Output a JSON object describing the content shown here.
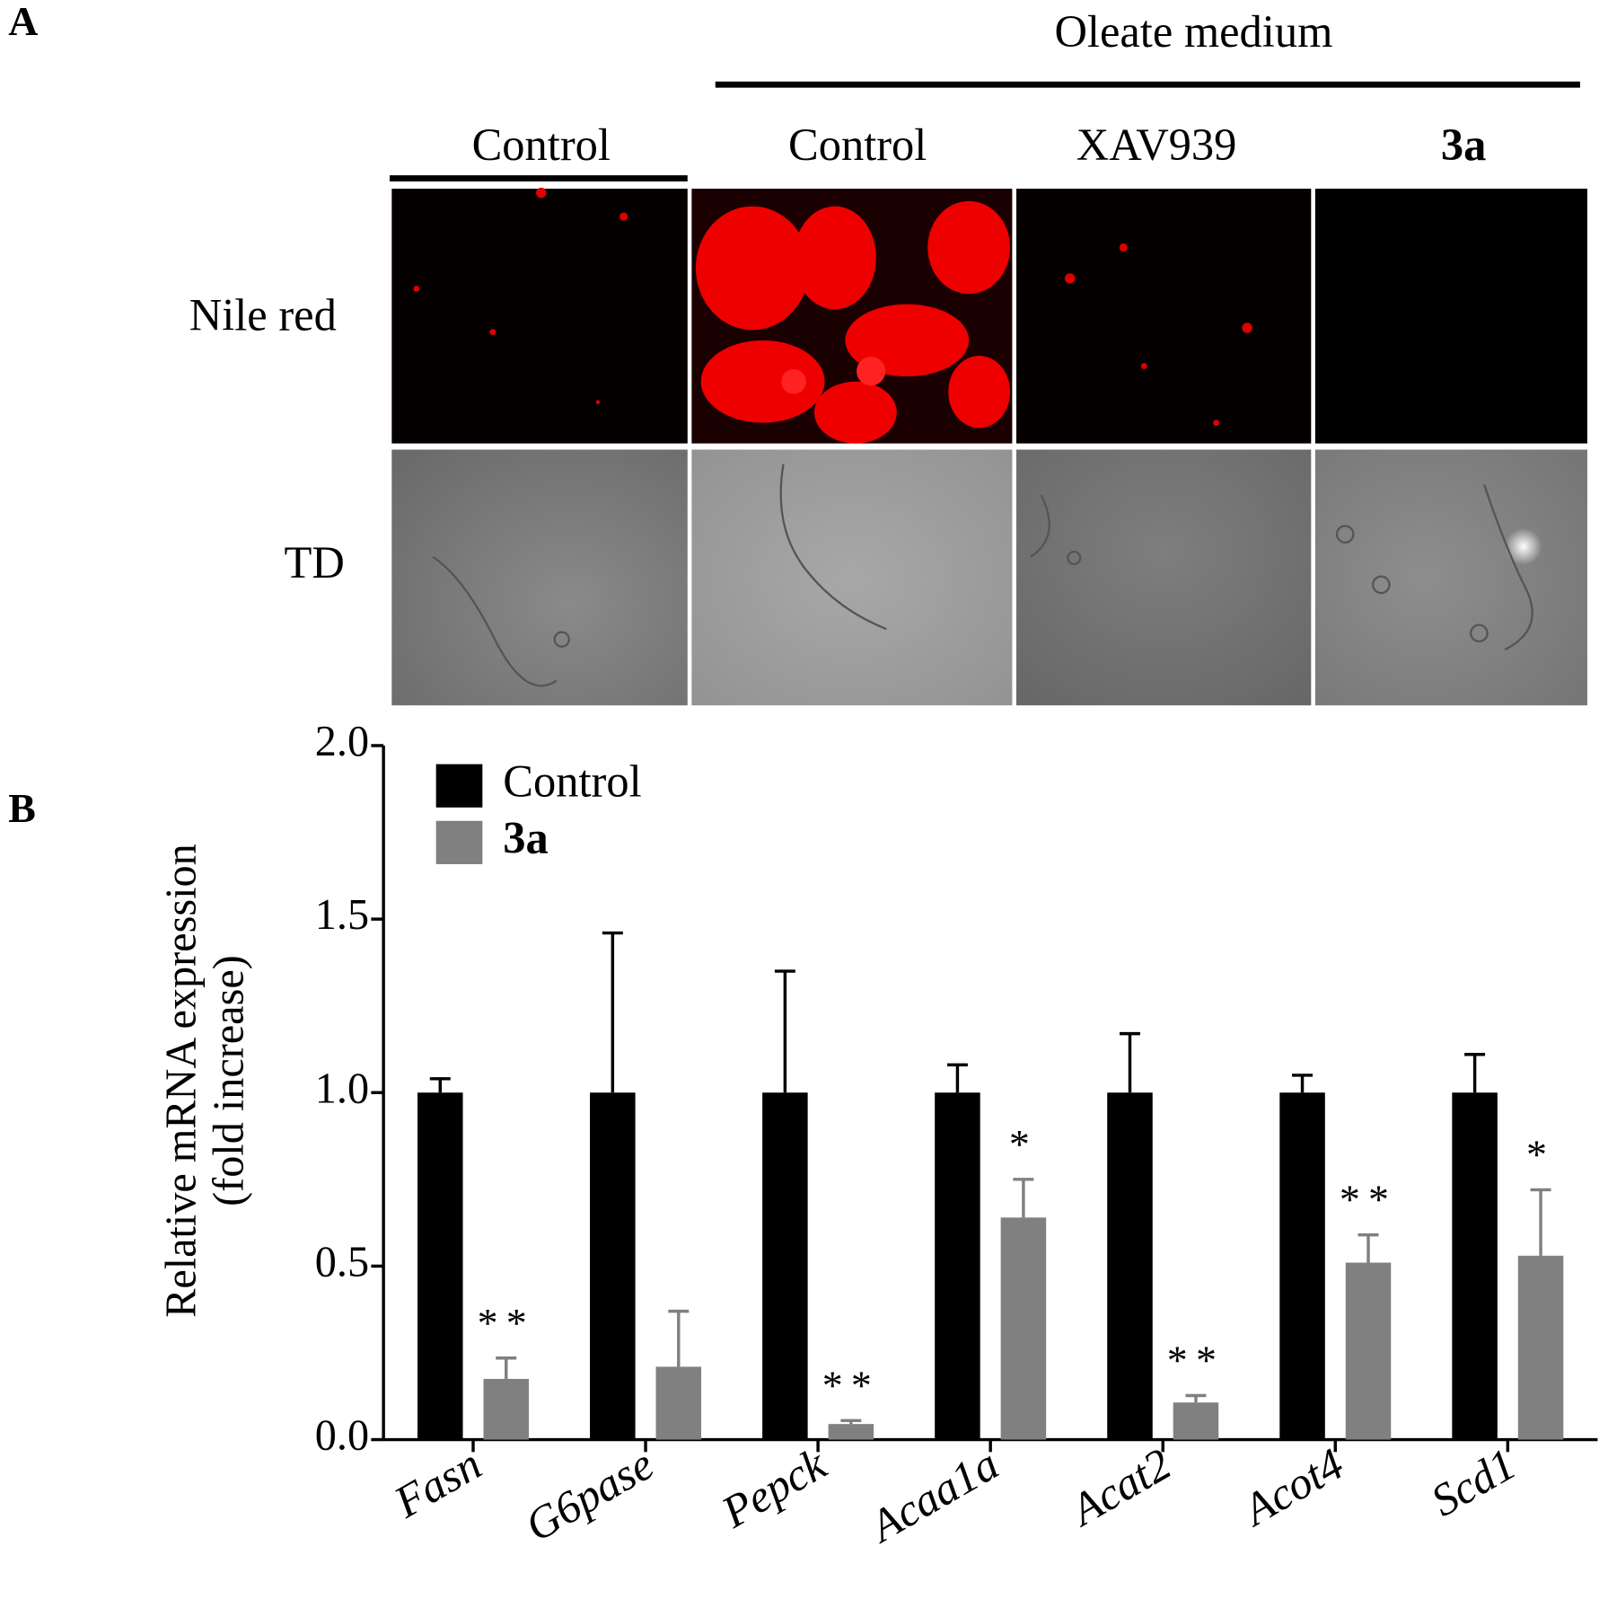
{
  "panel_a": {
    "label": "A",
    "group_label": "Oleate medium",
    "columns": [
      "Control",
      "Control",
      "XAV939",
      "3a"
    ],
    "rows": [
      "Nile red",
      "TD"
    ]
  },
  "panel_b": {
    "label": "B"
  },
  "chart_data": {
    "type": "bar",
    "y_label": [
      "Relative mRNA expression",
      "(fold increase)"
    ],
    "categories": [
      "Fasn",
      "G6pase",
      "Pepck",
      "Acaa1a",
      "Acat2",
      "Acot4",
      "Scd1"
    ],
    "series": [
      {
        "name": "Control",
        "color": "#000000",
        "values": [
          1.0,
          1.0,
          1.0,
          1.0,
          1.0,
          1.0,
          1.0
        ],
        "errors": [
          0.04,
          0.46,
          0.35,
          0.08,
          0.17,
          0.05,
          0.11
        ]
      },
      {
        "name": "3a",
        "color": "#808080",
        "values": [
          0.175,
          0.21,
          0.045,
          0.64,
          0.107,
          0.51,
          0.53
        ],
        "errors": [
          0.06,
          0.16,
          0.01,
          0.11,
          0.02,
          0.08,
          0.19
        ],
        "significance": [
          "**",
          null,
          "**",
          "*",
          "**",
          "**",
          "*"
        ]
      }
    ],
    "ylim": [
      0,
      2
    ],
    "yticks": [
      {
        "value": 0,
        "label": "0.0"
      },
      0.5,
      {
        "value": 1,
        "label": "1.0"
      },
      1.5,
      {
        "value": 2,
        "label": "2.0"
      }
    ],
    "legend": "upper left"
  }
}
